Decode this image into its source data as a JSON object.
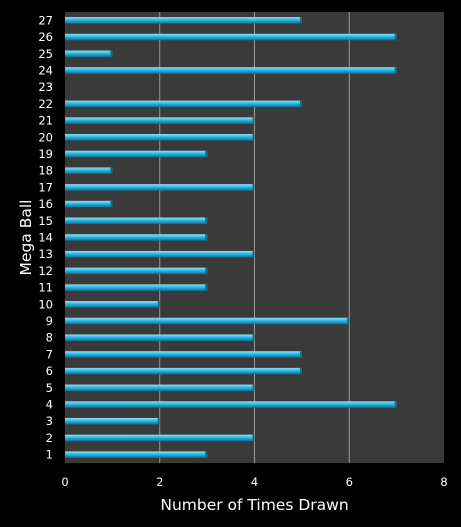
{
  "chart_data": {
    "type": "bar",
    "orientation": "horizontal",
    "xlabel": "Number of Times Drawn",
    "ylabel": "Mega Ball",
    "xlim": [
      0,
      8
    ],
    "x_ticks": [
      0,
      2,
      4,
      6,
      8
    ],
    "grid": true,
    "colors": {
      "background": "#000000",
      "plot_background": "#3a3a3a",
      "bar": "#29b8e5",
      "bar_highlight": "#8fe3fb",
      "bar_shadow": "#0e6f93",
      "gridline": "#9a9a9a",
      "text": "#ffffff"
    },
    "categories": [
      "1",
      "2",
      "3",
      "4",
      "5",
      "6",
      "7",
      "8",
      "9",
      "10",
      "11",
      "12",
      "13",
      "14",
      "15",
      "16",
      "17",
      "18",
      "19",
      "20",
      "21",
      "22",
      "23",
      "24",
      "25",
      "26",
      "27"
    ],
    "values": [
      3,
      4,
      2,
      7,
      4,
      5,
      5,
      4,
      6,
      2,
      3,
      3,
      4,
      3,
      3,
      1,
      4,
      1,
      3,
      4,
      4,
      5,
      0,
      7,
      1,
      7,
      5
    ]
  }
}
